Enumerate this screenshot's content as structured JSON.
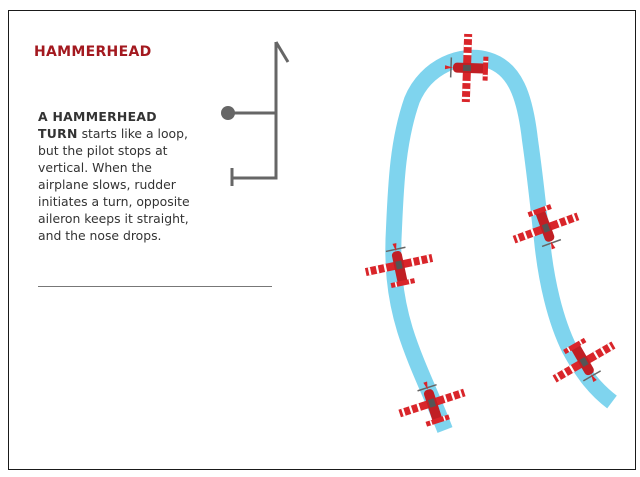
{
  "header": {
    "title": "HAMMERHEAD"
  },
  "description": {
    "lead": "A HAMMERHEAD TURN",
    "rest": " starts like a loop, but the pilot stops at vertical. When the airplane slows, rudder initiates a turn, opposite aileron keeps it straight, and the nose drops."
  },
  "colors": {
    "title": "#a3191f",
    "path": "#7fd4ee",
    "airplane": "#d9252a",
    "symbol": "#666666",
    "rule": "#777777"
  },
  "icons": {
    "maneuver_symbol": "hammerhead-notation-icon",
    "airplane": "airplane-icon"
  }
}
